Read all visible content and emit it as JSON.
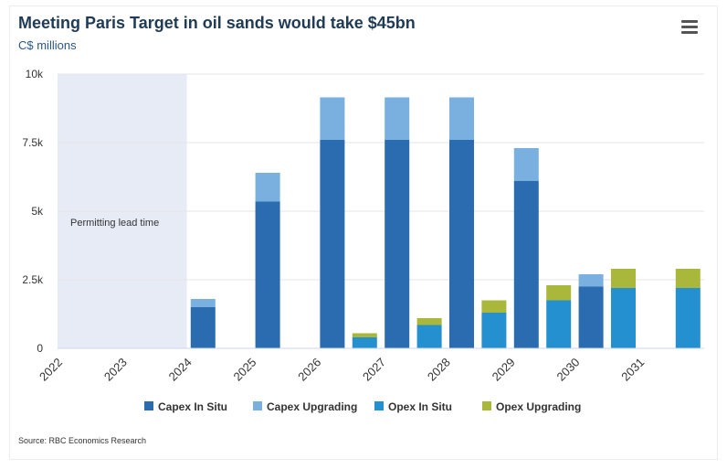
{
  "chart_data": {
    "type": "bar",
    "stacked": true,
    "title": "Meeting Paris Target in oil sands would take $45bn",
    "subtitle": "C$ millions",
    "x_labels": [
      "2022",
      "2023",
      "2024",
      "2025",
      "2026",
      "2027",
      "2028",
      "2029",
      "2030",
      "2031"
    ],
    "ylim": [
      0,
      10000
    ],
    "yticks": [
      {
        "value": 0,
        "label": "0"
      },
      {
        "value": 2500,
        "label": "2.5k"
      },
      {
        "value": 5000,
        "label": "5k"
      },
      {
        "value": 7500,
        "label": "7.5k"
      },
      {
        "value": 10000,
        "label": "10k"
      }
    ],
    "plot_band": {
      "from": 2022,
      "to": 2024,
      "label": "Permitting lead time",
      "color": "#e6ebf5"
    },
    "grid": true,
    "legend_position": "bottom",
    "series": [
      {
        "name": "Capex In Situ",
        "color": "#2b6cb0",
        "points": [
          {
            "x": 2024,
            "y": 1500
          },
          {
            "x": 2025,
            "y": 5350
          },
          {
            "x": 2026,
            "y": 7600
          },
          {
            "x": 2027,
            "y": 7600
          },
          {
            "x": 2028,
            "y": 7600
          },
          {
            "x": 2029,
            "y": 6100
          },
          {
            "x": 2030,
            "y": 2250
          }
        ]
      },
      {
        "name": "Capex Upgrading",
        "color": "#7ab0e0",
        "points": [
          {
            "x": 2024,
            "y": 300
          },
          {
            "x": 2025,
            "y": 1050
          },
          {
            "x": 2026,
            "y": 1550
          },
          {
            "x": 2027,
            "y": 1550
          },
          {
            "x": 2028,
            "y": 1550
          },
          {
            "x": 2029,
            "y": 1200
          },
          {
            "x": 2030,
            "y": 450
          }
        ]
      },
      {
        "name": "Opex In Situ",
        "color": "#2590d0",
        "points": [
          {
            "x": 2026.5,
            "y": 400
          },
          {
            "x": 2027.5,
            "y": 850
          },
          {
            "x": 2028.5,
            "y": 1300
          },
          {
            "x": 2029.5,
            "y": 1750
          },
          {
            "x": 2030.5,
            "y": 2200
          },
          {
            "x": 2031.5,
            "y": 2200
          }
        ]
      },
      {
        "name": "Opex Upgrading",
        "color": "#a9b83a",
        "points": [
          {
            "x": 2026.5,
            "y": 150
          },
          {
            "x": 2027.5,
            "y": 250
          },
          {
            "x": 2028.5,
            "y": 450
          },
          {
            "x": 2029.5,
            "y": 550
          },
          {
            "x": 2030.5,
            "y": 700
          },
          {
            "x": 2031.5,
            "y": 700
          }
        ]
      }
    ]
  },
  "source": "Source: RBC Economics Research"
}
